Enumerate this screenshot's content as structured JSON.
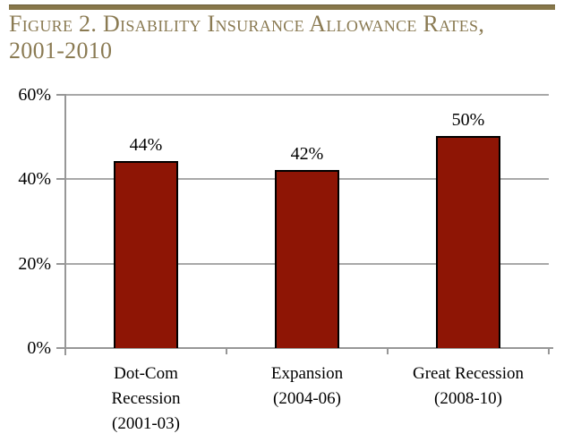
{
  "figure": {
    "title_line1": "Figure 2. Disability Insurance Allowance Rates,",
    "title_line2": "2001-2010",
    "title_color": "#8a7a52",
    "rule_color": "#87774a"
  },
  "chart_data": {
    "type": "bar",
    "title": "Figure 2. Disability Insurance Allowance Rates, 2001-2010",
    "categories": [
      [
        "Dot-Com",
        "Recession",
        "(2001-03)"
      ],
      [
        "Expansion",
        "(2004-06)"
      ],
      [
        "Great Recession",
        "(2008-10)"
      ]
    ],
    "values": [
      44,
      42,
      50
    ],
    "value_labels": [
      "44%",
      "42%",
      "50%"
    ],
    "xlabel": "",
    "ylabel": "",
    "ylim": [
      0,
      60
    ],
    "y_tick_values": [
      0,
      20,
      40,
      60
    ],
    "y_tick_labels": [
      "0%",
      "20%",
      "40%",
      "60%"
    ],
    "grid": true,
    "legend": "none",
    "bar_color": "#8e1505",
    "bar_border_color": "#000000",
    "gridline_color": "#a8a8a8",
    "axis_color": "#979797",
    "label_color": "#000000"
  }
}
